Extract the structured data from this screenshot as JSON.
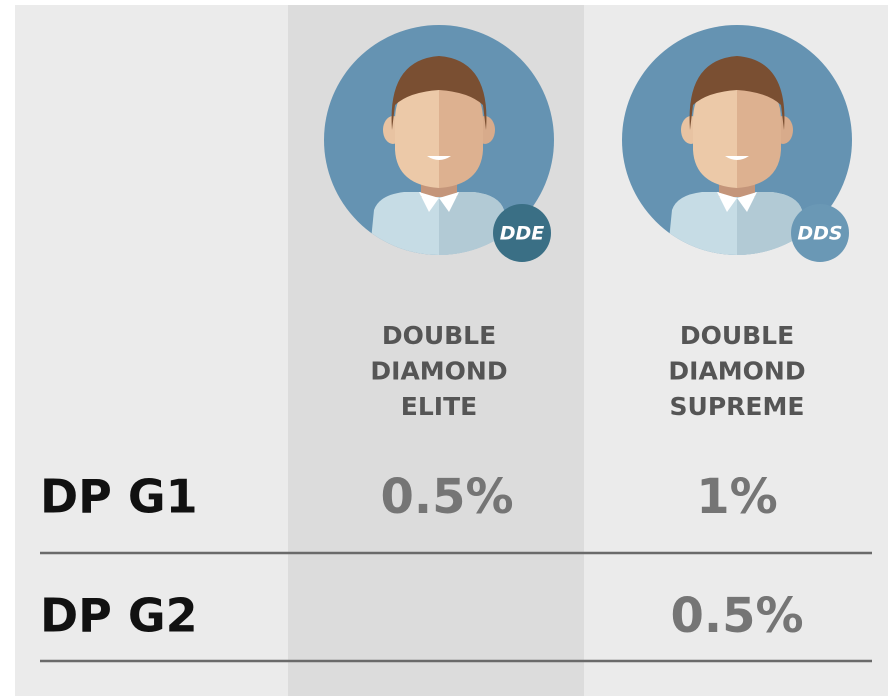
{
  "columns": [
    {
      "badge": "DDE",
      "title": [
        "DOUBLE",
        "DIAMOND",
        "ELITE"
      ]
    },
    {
      "badge": "DDS",
      "title": [
        "DOUBLE",
        "DIAMOND",
        "SUPREME"
      ]
    }
  ],
  "rows": [
    {
      "label": "DP G1",
      "cells": [
        "0.5%",
        "1%"
      ]
    },
    {
      "label": "DP G2",
      "cells": [
        null,
        "0.5%"
      ]
    }
  ]
}
